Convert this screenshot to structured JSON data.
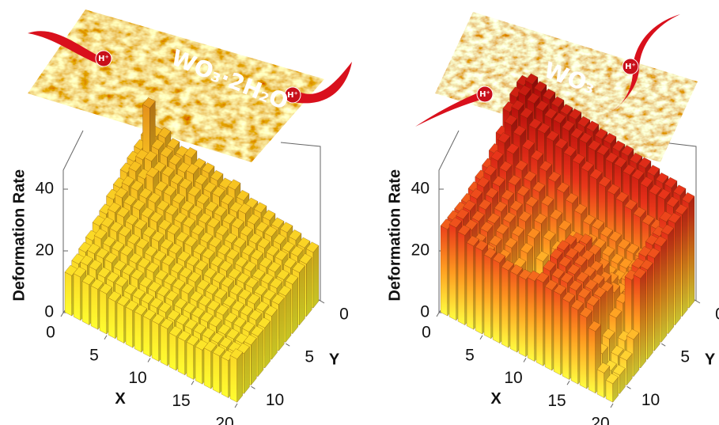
{
  "chart_data": [
    {
      "type": "bar3d",
      "zlabel": "Deformation Rate",
      "xlabel": "X",
      "ylabel": "Y",
      "annotations": [
        "WO₃·2H₂O",
        "H⁺",
        "H⁺"
      ],
      "xlim": [
        0,
        20
      ],
      "ylim": [
        0,
        12
      ],
      "zlim": [
        0,
        45
      ],
      "xticks": [
        0,
        5,
        10,
        15,
        20
      ],
      "yticks": [
        0,
        5,
        10
      ],
      "zticks": [
        0,
        20,
        40
      ],
      "colormap": [
        "#ffff30",
        "#f7c020",
        "#e0861a"
      ],
      "values": [
        [
          27,
          29,
          30,
          28,
          27,
          28,
          26,
          26,
          25,
          24,
          25,
          23,
          22,
          22,
          21,
          20,
          20,
          19,
          18,
          18
        ],
        [
          26,
          41,
          29,
          28,
          27,
          26,
          27,
          25,
          24,
          24,
          23,
          22,
          23,
          21,
          20,
          20,
          19,
          18,
          18,
          17
        ],
        [
          25,
          27,
          28,
          26,
          26,
          25,
          25,
          24,
          23,
          22,
          22,
          21,
          21,
          20,
          19,
          19,
          18,
          18,
          17,
          17
        ],
        [
          24,
          26,
          25,
          27,
          24,
          24,
          23,
          22,
          22,
          21,
          21,
          20,
          19,
          19,
          18,
          18,
          17,
          17,
          16,
          16
        ],
        [
          22,
          24,
          24,
          23,
          23,
          22,
          22,
          21,
          21,
          20,
          19,
          19,
          18,
          18,
          17,
          17,
          16,
          16,
          16,
          15
        ],
        [
          21,
          23,
          22,
          22,
          21,
          21,
          20,
          20,
          19,
          19,
          18,
          18,
          17,
          17,
          16,
          16,
          16,
          15,
          15,
          15
        ],
        [
          19,
          21,
          21,
          20,
          20,
          19,
          19,
          18,
          18,
          17,
          17,
          17,
          16,
          16,
          16,
          15,
          15,
          15,
          14,
          14
        ],
        [
          18,
          19,
          19,
          19,
          18,
          18,
          17,
          17,
          17,
          16,
          16,
          16,
          15,
          15,
          15,
          14,
          14,
          14,
          14,
          13
        ],
        [
          16,
          18,
          17,
          17,
          17,
          16,
          16,
          16,
          15,
          15,
          15,
          15,
          14,
          14,
          14,
          14,
          13,
          13,
          13,
          13
        ],
        [
          15,
          16,
          16,
          16,
          15,
          15,
          15,
          14,
          14,
          14,
          14,
          13,
          13,
          13,
          13,
          13,
          12,
          12,
          12,
          13
        ],
        [
          14,
          15,
          15,
          14,
          14,
          14,
          13,
          13,
          13,
          13,
          13,
          12,
          12,
          12,
          12,
          12,
          12,
          12,
          12,
          13
        ],
        [
          13,
          14,
          13,
          13,
          13,
          12,
          12,
          12,
          12,
          12,
          12,
          12,
          11,
          11,
          11,
          11,
          12,
          12,
          12,
          14
        ]
      ]
    },
    {
      "type": "bar3d",
      "zlabel": "Deformation Rate",
      "xlabel": "X",
      "ylabel": "Y",
      "annotations": [
        "WO₃",
        "H⁺",
        "H⁺"
      ],
      "xlim": [
        0,
        20
      ],
      "ylim": [
        0,
        12
      ],
      "zlim": [
        0,
        45
      ],
      "xticks": [
        0,
        5,
        10,
        15,
        20
      ],
      "yticks": [
        0,
        5,
        10
      ],
      "zticks": [
        0,
        20,
        40
      ],
      "colormap": [
        "#ffff40",
        "#ff9a20",
        "#e8321a",
        "#b00a0a"
      ],
      "values": [
        [
          44,
          46,
          45,
          44,
          43,
          42,
          42,
          41,
          41,
          40,
          40,
          39,
          39,
          38,
          38,
          37,
          36,
          36,
          35,
          34
        ],
        [
          43,
          45,
          44,
          43,
          42,
          42,
          41,
          40,
          40,
          39,
          39,
          38,
          38,
          37,
          37,
          36,
          35,
          35,
          34,
          33
        ],
        [
          41,
          43,
          42,
          40,
          40,
          39,
          38,
          37,
          36,
          35,
          34,
          33,
          32,
          31,
          30,
          29,
          28,
          28,
          32,
          33
        ],
        [
          36,
          41,
          39,
          36,
          34,
          32,
          30,
          28,
          26,
          24,
          22,
          22,
          21,
          21,
          20,
          20,
          20,
          22,
          30,
          32
        ],
        [
          33,
          38,
          36,
          32,
          30,
          28,
          25,
          22,
          20,
          18,
          18,
          20,
          20,
          19,
          18,
          18,
          19,
          21,
          30,
          31
        ],
        [
          31,
          35,
          33,
          30,
          28,
          26,
          22,
          18,
          16,
          16,
          18,
          20,
          19,
          18,
          17,
          17,
          18,
          20,
          29,
          30
        ],
        [
          30,
          33,
          31,
          28,
          26,
          24,
          20,
          14,
          12,
          14,
          16,
          26,
          27,
          25,
          22,
          19,
          17,
          18,
          28,
          29
        ],
        [
          29,
          32,
          30,
          27,
          25,
          22,
          18,
          10,
          8,
          10,
          14,
          28,
          27,
          26,
          24,
          22,
          20,
          18,
          27,
          29
        ],
        [
          28,
          31,
          29,
          26,
          24,
          21,
          16,
          8,
          6,
          8,
          12,
          29,
          28,
          27,
          25,
          24,
          23,
          16,
          10,
          12
        ],
        [
          28,
          30,
          28,
          26,
          23,
          20,
          14,
          6,
          5,
          7,
          10,
          29,
          28,
          27,
          26,
          25,
          24,
          12,
          8,
          8
        ],
        [
          28,
          30,
          28,
          25,
          23,
          19,
          12,
          5,
          4,
          6,
          9,
          28,
          27,
          27,
          26,
          25,
          24,
          10,
          6,
          6
        ],
        [
          28,
          30,
          29,
          27,
          27,
          26,
          26,
          25,
          25,
          25,
          26,
          27,
          26,
          26,
          25,
          24,
          23,
          20,
          8,
          6
        ]
      ]
    }
  ]
}
